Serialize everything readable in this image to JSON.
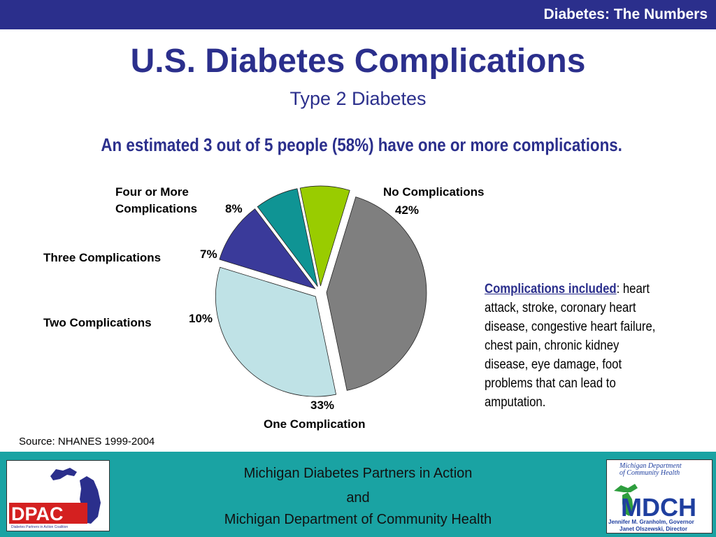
{
  "header": {
    "section_title": "Diabetes: The Numbers"
  },
  "slide": {
    "title": "U.S. Diabetes Complications",
    "subtitle": "Type 2 Diabetes",
    "headline": "An estimated 3 out of 5 people (58%) have one or more complications."
  },
  "chart_data": {
    "type": "pie",
    "slices": [
      {
        "label": "No Complications",
        "value": 42,
        "value_label": "42%",
        "color": "#7f7f7f"
      },
      {
        "label": "One Complication",
        "value": 33,
        "value_label": "33%",
        "color": "#bfe2e6"
      },
      {
        "label": "Two Complications",
        "value": 10,
        "value_label": "10%",
        "color": "#3a3a9a"
      },
      {
        "label": "Three Complications",
        "value": 7,
        "value_label": "7%",
        "color": "#0f9494"
      },
      {
        "label": "Four or More Complications",
        "value": 8,
        "value_label": "8%",
        "color": "#99cc00"
      }
    ],
    "label_lines": {
      "four_or_more": [
        "Four or More",
        "Complications"
      ]
    },
    "exploded": true
  },
  "note": {
    "heading": "Complications included",
    "body": ": heart attack, stroke, coronary heart disease, congestive heart failure, chest pain, chronic kidney disease, eye damage, foot problems that can lead to amputation."
  },
  "source": "Source: NHANES 1999-2004",
  "footer": {
    "line1": "Michigan Diabetes Partners in Action",
    "line2": "and",
    "line3": "Michigan Department of Community Health"
  },
  "logos": {
    "left": {
      "text": "DPAC",
      "tagline": "Diabetes Partners in Action Coalition",
      "color": "#2b2f8c",
      "accent": "#d42020"
    },
    "right": {
      "name_lines": [
        "Michigan Department",
        "of Community Health"
      ],
      "acronym": "MDCH",
      "officials": [
        "Jennifer M. Granholm, Governor",
        "Janet Olszewski, Director"
      ],
      "color": "#1f3f9f",
      "accent": "#2e9e3e"
    }
  }
}
